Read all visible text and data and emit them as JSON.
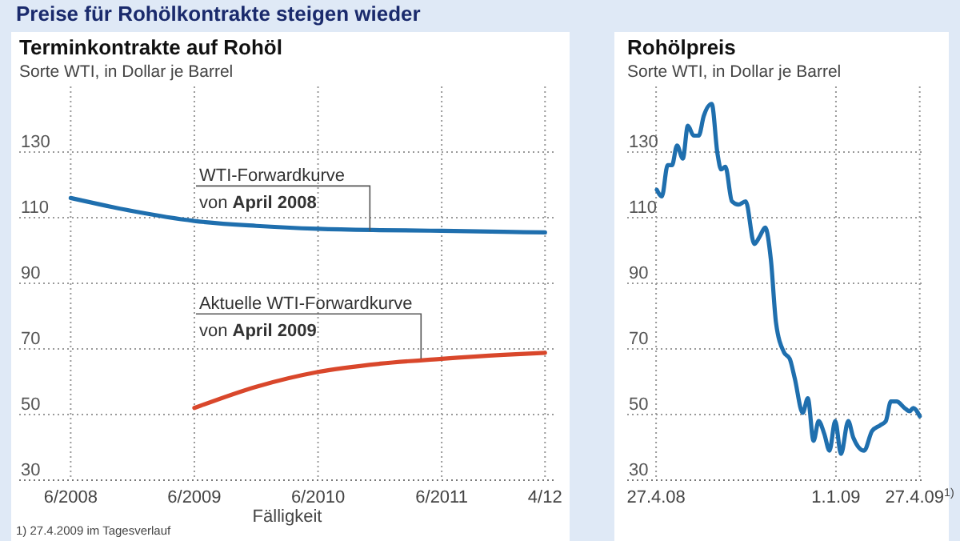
{
  "chart_data": [
    {
      "type": "line",
      "title": "Terminkontrakte auf Rohöl",
      "subtitle": "Sorte WTI, in Dollar je Barrel",
      "xlabel": "Fälligkeit",
      "annotations": [
        "Preise für Rohölkontrakte steigen wieder",
        "1) 27.4.2009 im Tagesverlauf",
        {
          "text": "WTI-Forwardkurve\nvon April 2008",
          "x": "2010-11",
          "y": 106
        },
        {
          "text": "Aktuelle WTI-Forwardkurve\nvon April 2009",
          "x": "2011-04",
          "y": 67
        }
      ],
      "xlim": [
        "2008-01",
        "2012-05"
      ],
      "xticks": [
        {
          "value": "2008-06",
          "label": "6/2008"
        },
        {
          "value": "2009-06",
          "label": "6/2009"
        },
        {
          "value": "2010-06",
          "label": "6/2010"
        },
        {
          "value": "2011-06",
          "label": "6/2011"
        },
        {
          "value": "2012-04",
          "label": "4/12"
        }
      ],
      "ylim": [
        30,
        150
      ],
      "yticks": [
        30,
        50,
        70,
        90,
        110,
        130
      ],
      "grid": true,
      "line_style": "solid",
      "marker": "none",
      "series": [
        {
          "color": "#1f6fae",
          "x": [
            "2008-06",
            "2008-12",
            "2009-06",
            "2009-12",
            "2010-06",
            "2010-12",
            "2011-06",
            "2011-12",
            "2012-04"
          ],
          "values": [
            116,
            112,
            109,
            107.5,
            106.6,
            106.2,
            106,
            105.7,
            105.5
          ]
        },
        {
          "color": "#d9472b",
          "x": [
            "2009-06",
            "2009-12",
            "2010-06",
            "2010-12",
            "2011-06",
            "2011-12",
            "2012-04"
          ],
          "values": [
            52,
            58.5,
            63,
            65.5,
            67,
            68.2,
            68.8
          ]
        }
      ]
    },
    {
      "type": "line",
      "title": "Rohölpreis",
      "subtitle": "Sorte WTI, in Dollar je Barrel",
      "xlim": [
        "2008-03-18",
        "2009-05-04"
      ],
      "xticks": [
        {
          "value": "2008-04-27",
          "label": "27.4.08"
        },
        {
          "value": "2009-01-01",
          "label": "1.1.09"
        },
        {
          "value": "2009-04-27",
          "label": "27.4.09$^{1)}$"
        }
      ],
      "ylim": [
        30,
        150
      ],
      "yticks": [
        30,
        50,
        70,
        90,
        110,
        130
      ],
      "grid": true,
      "line_style": "solid",
      "marker": "none",
      "series": [
        {
          "color": "#1f6fae",
          "x": [
            "2008-04-28",
            "2008-05-05",
            "2008-05-13",
            "2008-05-19",
            "2008-05-26",
            "2008-06-03",
            "2008-06-10",
            "2008-06-18",
            "2008-06-25",
            "2008-07-02",
            "2008-07-13",
            "2008-07-21",
            "2008-07-26",
            "2008-08-01",
            "2008-08-10",
            "2008-08-19",
            "2008-08-29",
            "2008-09-10",
            "2008-09-18",
            "2008-09-25",
            "2008-10-03",
            "2008-10-10",
            "2008-10-21",
            "2008-10-29",
            "2008-11-05",
            "2008-11-16",
            "2008-11-23",
            "2008-12-01",
            "2008-12-08",
            "2008-12-16",
            "2008-12-23",
            "2008-12-31",
            "2009-01-08",
            "2009-01-18",
            "2009-01-25",
            "2009-02-09",
            "2009-02-20",
            "2009-03-03",
            "2009-03-11",
            "2009-03-18",
            "2009-03-26",
            "2009-04-06",
            "2009-04-13",
            "2009-04-18",
            "2009-04-27"
          ],
          "values": [
            118.5,
            116.5,
            126,
            126,
            132,
            128,
            138,
            135,
            135,
            141,
            144.7,
            129.5,
            124.7,
            125.5,
            115,
            114,
            115,
            102,
            104.5,
            107,
            97,
            78,
            69,
            67,
            61,
            50.5,
            55,
            42,
            48,
            44,
            39,
            48,
            38,
            48,
            43,
            39,
            45,
            46.7,
            48,
            54,
            54,
            52,
            51,
            52,
            49.5
          ]
        }
      ]
    }
  ]
}
